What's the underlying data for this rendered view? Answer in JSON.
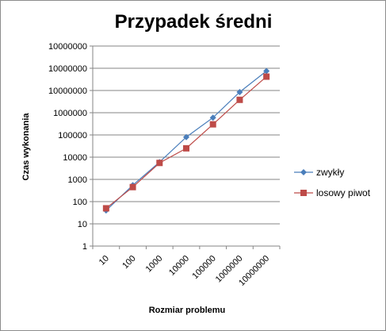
{
  "chart_data": {
    "type": "line",
    "title": "Przypadek średni",
    "xlabel": "Rozmiar problemu",
    "ylabel": "Czas wykonania",
    "x_categories": [
      "10",
      "100",
      "1000",
      "10000",
      "100000",
      "1000000",
      "10000000"
    ],
    "y_tick_labels": [
      "1",
      "10",
      "100",
      "1000",
      "10000",
      "100000",
      "1000000",
      "10000000",
      "10000000",
      "10000000"
    ],
    "y_scale": "log",
    "ylim": [
      1,
      1000000000
    ],
    "grid": true,
    "legend_position": "right",
    "series": [
      {
        "name": "zwykły",
        "color": "#4a7ebb",
        "marker": "diamond",
        "values": [
          40,
          550,
          6000,
          80000,
          600000,
          8500000,
          75000000
        ]
      },
      {
        "name": "losowy piwot",
        "color": "#be4b48",
        "marker": "square",
        "values": [
          50,
          450,
          5500,
          25000,
          300000,
          3800000,
          42000000
        ]
      }
    ]
  }
}
